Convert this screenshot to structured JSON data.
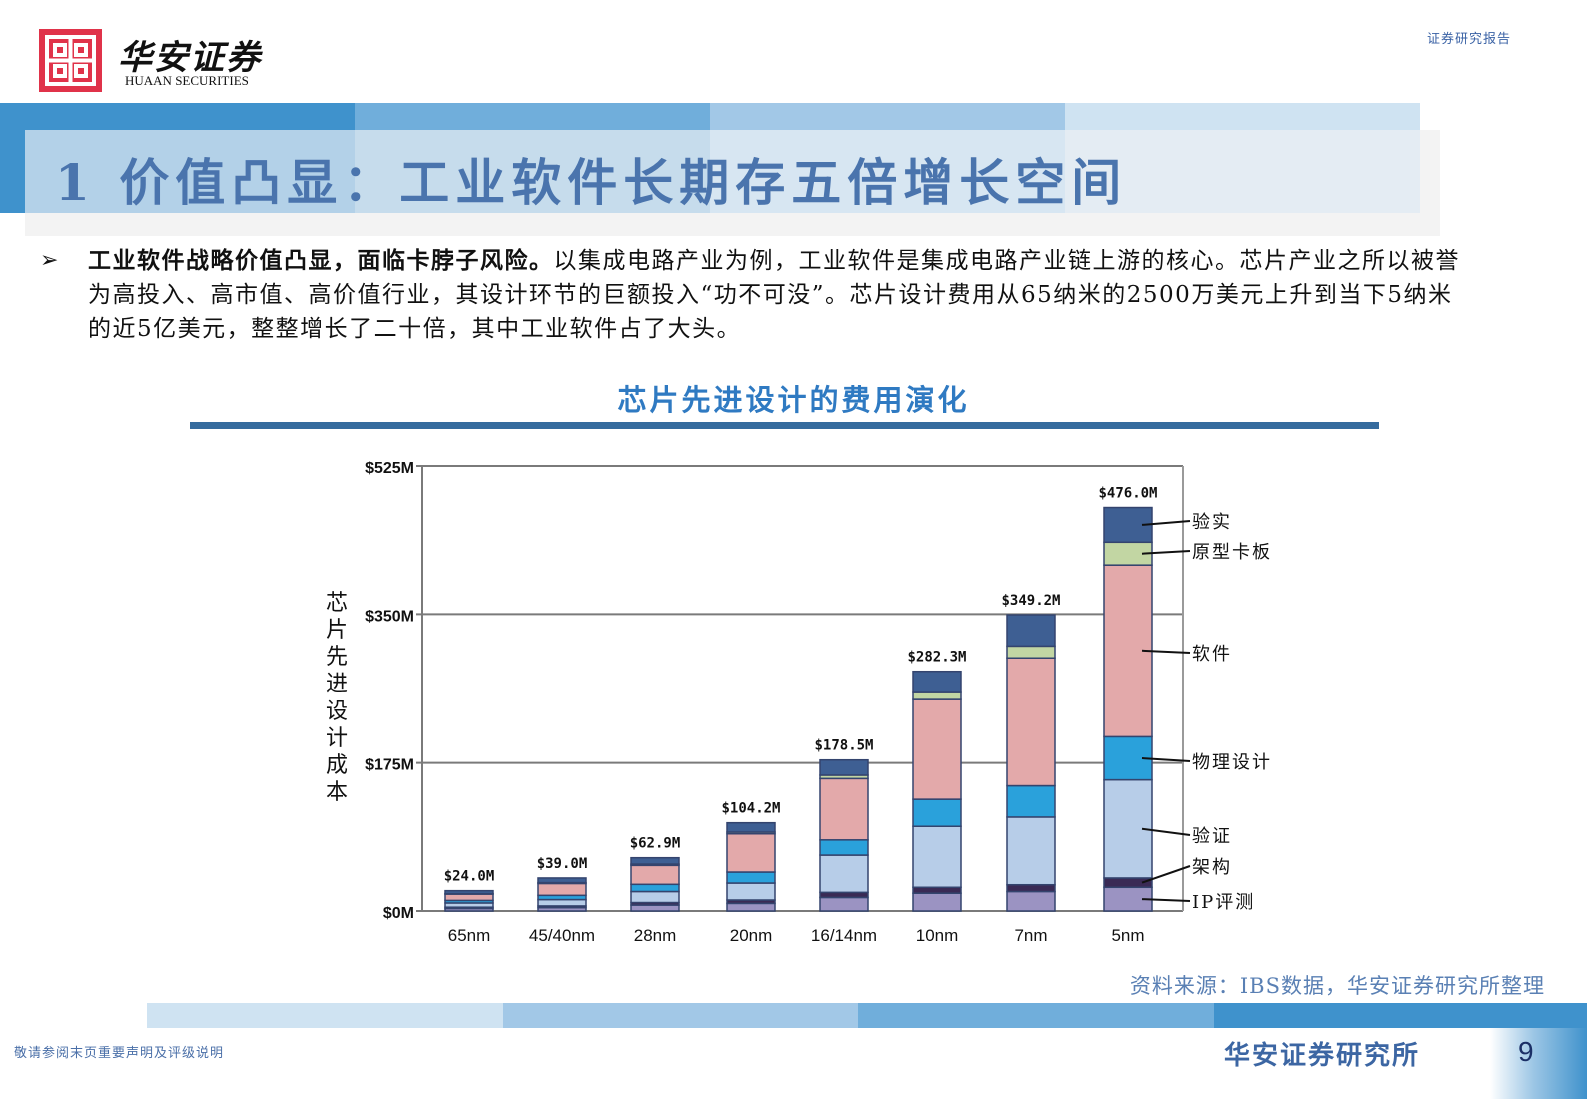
{
  "header": {
    "logo_cn": "华安证券",
    "logo_en": "HUAAN SECURITIES",
    "report_type": "证券研究报告"
  },
  "title": {
    "text": "1 价值凸显：工业软件长期存五倍增长空间"
  },
  "bullet": {
    "bold_lead": "工业软件战略价值凸显，面临卡脖子风险。",
    "body": "以集成电路产业为例，工业软件是集成电路产业链上游的核心。芯片产业之所以被誉为高投入、高市值、高价值行业，其设计环节的巨额投入“功不可没”。芯片设计费用从65纳米的2500万美元上升到当下5纳米的近5亿美元，整整增长了二十倍，其中工业软件占了大头。"
  },
  "chart_section": {
    "title": "芯片先进设计的费用演化"
  },
  "chart_data": {
    "type": "bar",
    "stacked": true,
    "title": "芯片先进设计的费用演化",
    "xlabel": "",
    "ylabel": "芯片先进设计成本",
    "ylim": [
      0,
      525
    ],
    "yticks": [
      "$0M",
      "$175M",
      "$350M",
      "$525M"
    ],
    "ytick_values": [
      0,
      175,
      350,
      525
    ],
    "grid": true,
    "legend_position": "right (annotated leader lines on 5nm bar)",
    "categories": [
      "65nm",
      "45/40nm",
      "28nm",
      "20nm",
      "16/14nm",
      "10nm",
      "7nm",
      "5nm"
    ],
    "totals": [
      24.0,
      39.0,
      62.9,
      104.2,
      178.5,
      282.3,
      349.2,
      476.0
    ],
    "total_labels": [
      "$24.0M",
      "$39.0M",
      "$62.9M",
      "$104.2M",
      "$178.5M",
      "$282.3M",
      "$349.2M",
      "$476.0M"
    ],
    "series": [
      {
        "name": "IP评测",
        "color": "#9b93c2",
        "values": [
          3.0,
          4.0,
          7.0,
          9.0,
          16.0,
          21.0,
          23.0,
          28.0
        ]
      },
      {
        "name": "架构",
        "color": "#3a2a55",
        "values": [
          1.5,
          2.0,
          3.0,
          4.0,
          6.0,
          7.0,
          8.0,
          11.0
        ]
      },
      {
        "name": "验证",
        "color": "#b7cde8",
        "values": [
          5.0,
          7.5,
          13.0,
          20.0,
          44.0,
          72.0,
          80.0,
          116.0
        ]
      },
      {
        "name": "物理设计",
        "color": "#2aa1db",
        "values": [
          3.0,
          5.0,
          8.5,
          13.0,
          18.0,
          32.0,
          37.0,
          51.0
        ]
      },
      {
        "name": "软件",
        "color": "#e3a9aa",
        "values": [
          7.5,
          14.0,
          22.4,
          45.2,
          72.5,
          118.0,
          150.2,
          202.0
        ]
      },
      {
        "name": "原型卡板",
        "color": "#c2d6a3",
        "values": [
          0.5,
          1.0,
          1.5,
          2.0,
          4.0,
          8.3,
          14.0,
          27.0
        ]
      },
      {
        "name": "验实",
        "color": "#3e5f93",
        "values": [
          3.5,
          5.5,
          7.5,
          11.0,
          18.0,
          24.0,
          37.0,
          41.0
        ]
      }
    ]
  },
  "source": {
    "text": "资料来源：IBS数据，华安证券研究所整理"
  },
  "footer": {
    "disclaimer": "敬请参阅末页重要声明及评级说明",
    "org": "华安证券研究所",
    "page_number": "9"
  },
  "colors": {
    "brand_red": "#e0334a",
    "title_blue": "#4a74ad",
    "accent_blue": "#3f92cc",
    "chart_title_blue": "#2f7ac2",
    "rule_blue": "#356b9e"
  }
}
